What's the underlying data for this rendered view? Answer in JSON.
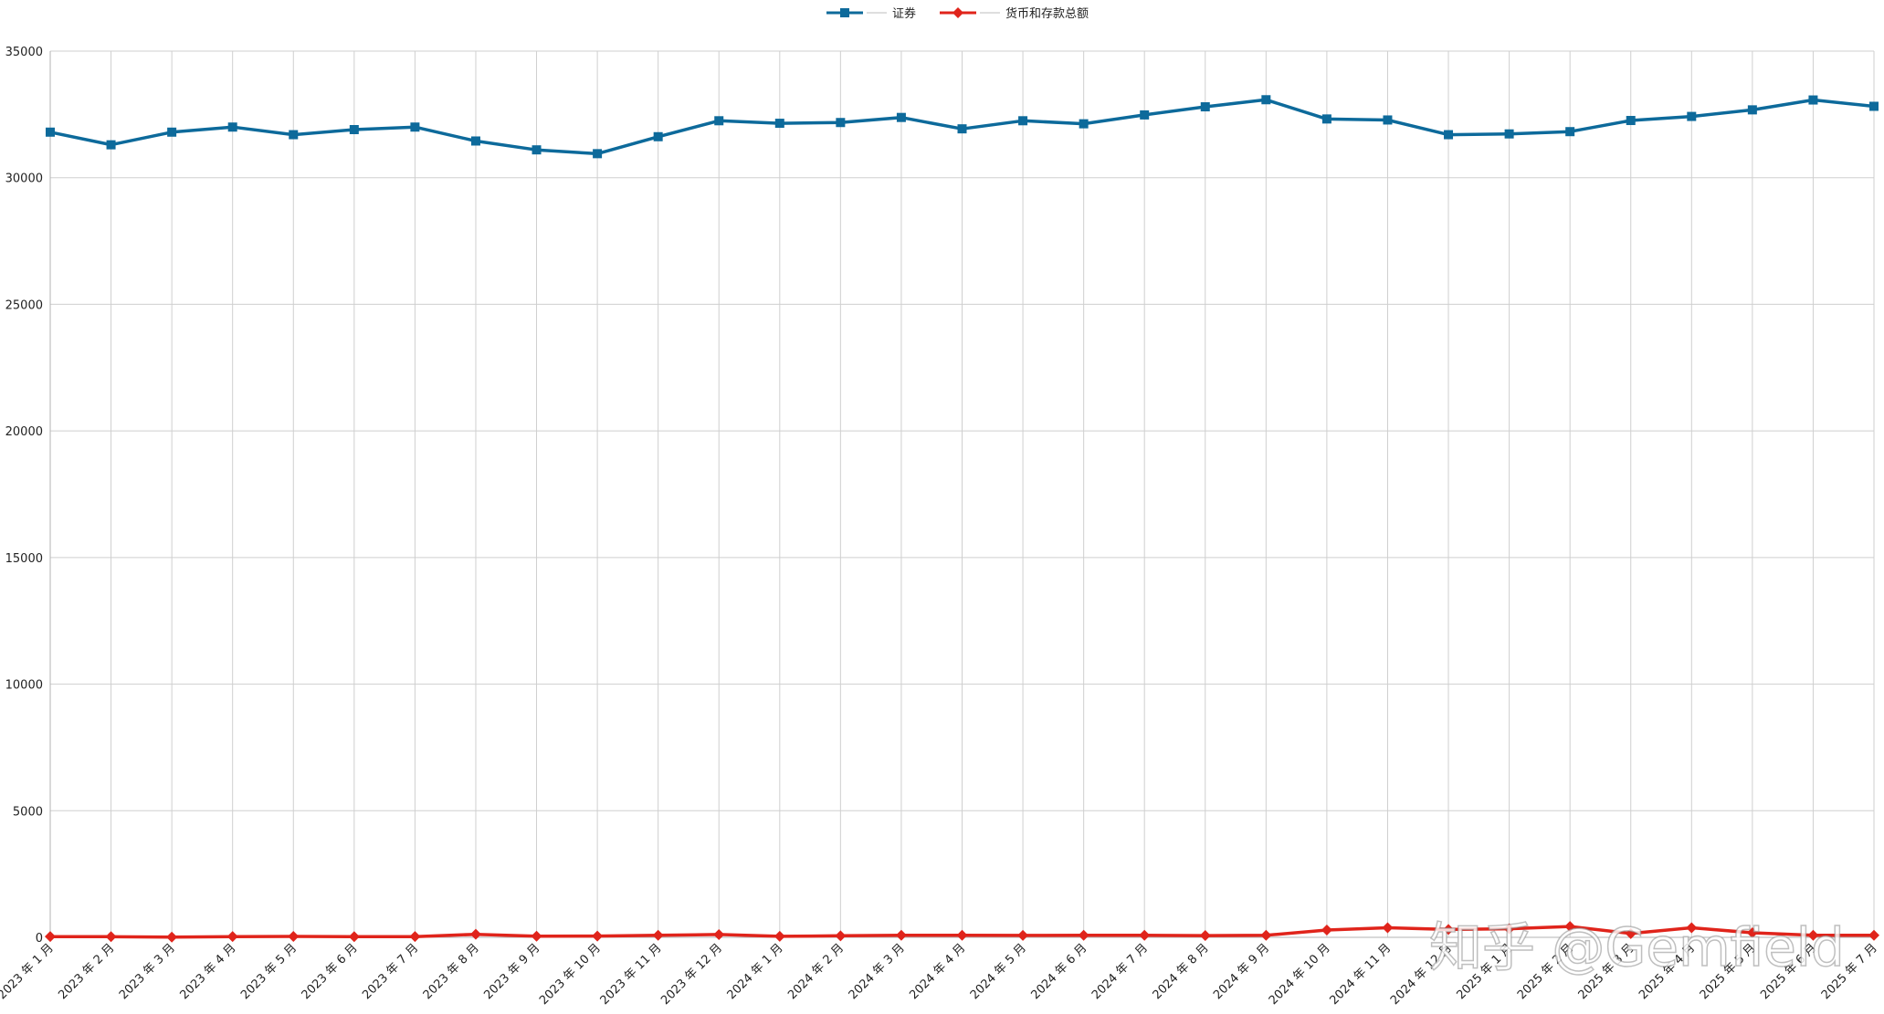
{
  "chart_data": {
    "type": "line",
    "categories": [
      "2023 年 1 月",
      "2023 年 2 月",
      "2023 年 3 月",
      "2023 年 4 月",
      "2023 年 5 月",
      "2023 年 6 月",
      "2023 年 7 月",
      "2023 年 8 月",
      "2023 年 9 月",
      "2023 年 10 月",
      "2023 年 11 月",
      "2023 年 12 月",
      "2024 年 1 月",
      "2024 年 2 月",
      "2024 年 3 月",
      "2024 年 4 月",
      "2024 年 5 月",
      "2024 年 6 月",
      "2024 年 7 月",
      "2024 年 8 月",
      "2024 年 9 月",
      "2024 年 10 月",
      "2024 年 11 月",
      "2024 年 12 月",
      "2025 年 1 月",
      "2025 年 2 月",
      "2025 年 3 月",
      "2025 年 4 月",
      "2025 年 5 月",
      "2025 年 6 月",
      "2025 年 7 月"
    ],
    "series": [
      {
        "name": "证券",
        "color": "#0d6a9b",
        "marker": "square",
        "values": [
          31800,
          31300,
          31800,
          32000,
          31700,
          31900,
          32000,
          31450,
          31100,
          30950,
          31620,
          32250,
          32150,
          32180,
          32380,
          31930,
          32250,
          32130,
          32480,
          32800,
          33080,
          32320,
          32280,
          31700,
          31730,
          31820,
          32260,
          32420,
          32680,
          33070,
          32820
        ]
      },
      {
        "name": "货币和存款总额",
        "color": "#e0241b",
        "marker": "diamond",
        "values": [
          30,
          25,
          10,
          30,
          35,
          25,
          30,
          120,
          45,
          50,
          80,
          110,
          40,
          60,
          80,
          80,
          75,
          80,
          80,
          70,
          80,
          290,
          380,
          310,
          340,
          430,
          150,
          380,
          180,
          80,
          80
        ]
      }
    ],
    "y_ticks": [
      "0",
      "5000",
      "10000",
      "15000",
      "20000",
      "25000",
      "30000",
      "35000"
    ],
    "ylim": [
      0,
      35000
    ],
    "grid": true,
    "legend_position": "top-center",
    "watermark": "知乎 @Gemfield"
  }
}
